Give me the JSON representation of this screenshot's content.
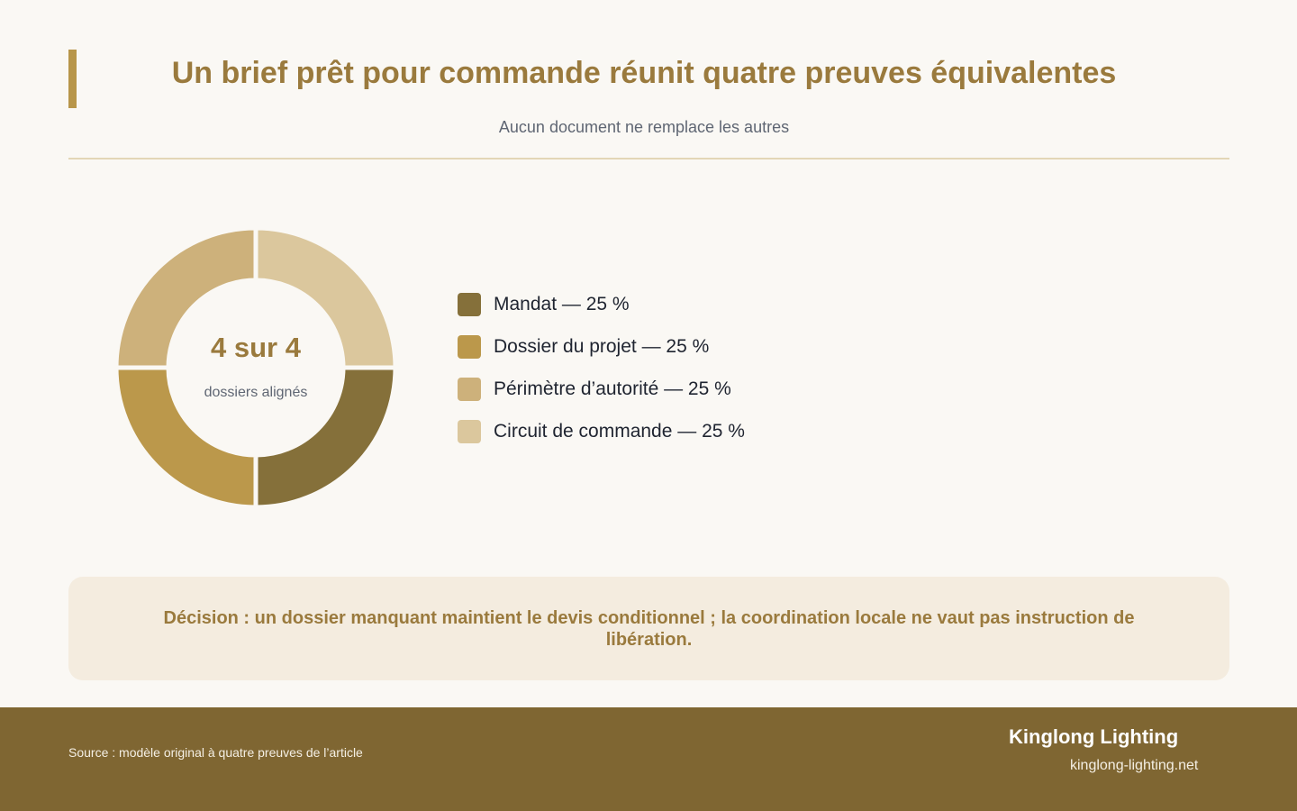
{
  "header": {
    "title": "Un brief prêt pour commande réunit quatre preuves équivalentes",
    "subtitle": "Aucun document ne remplace les autres"
  },
  "chart_data": {
    "type": "pie",
    "style": "donut",
    "title": "Un brief prêt pour commande réunit quatre preuves équivalentes",
    "subtitle": "Aucun document ne remplace les autres",
    "center_value": "4 sur 4",
    "center_label": "dossiers alignés",
    "legend_placement": "right",
    "slices": [
      {
        "name": "Mandat",
        "value": 25,
        "label": "Mandat — 25 %",
        "color": "#85703a"
      },
      {
        "name": "Dossier du projet",
        "value": 25,
        "label": "Dossier du projet — 25 %",
        "color": "#bb984b"
      },
      {
        "name": "Périmètre d’autorité",
        "value": 25,
        "label": "Périmètre d’autorité — 25 %",
        "color": "#cdb17b"
      },
      {
        "name": "Circuit de commande",
        "value": 25,
        "label": "Circuit de commande — 25 %",
        "color": "#dbc79d"
      }
    ]
  },
  "decision": {
    "text": "Décision : un dossier manquant maintient le devis conditionnel ; la coordination locale ne vaut pas instruction de libération."
  },
  "footer": {
    "source": "Source : modèle original à quatre preuves de l’article",
    "brand": "Kinglong Lighting",
    "url": "kinglong-lighting.net"
  },
  "colors": {
    "accent": "#b8964a",
    "title": "#9a7a3d",
    "footer_bg": "#7f6632",
    "background": "#faf8f4"
  }
}
